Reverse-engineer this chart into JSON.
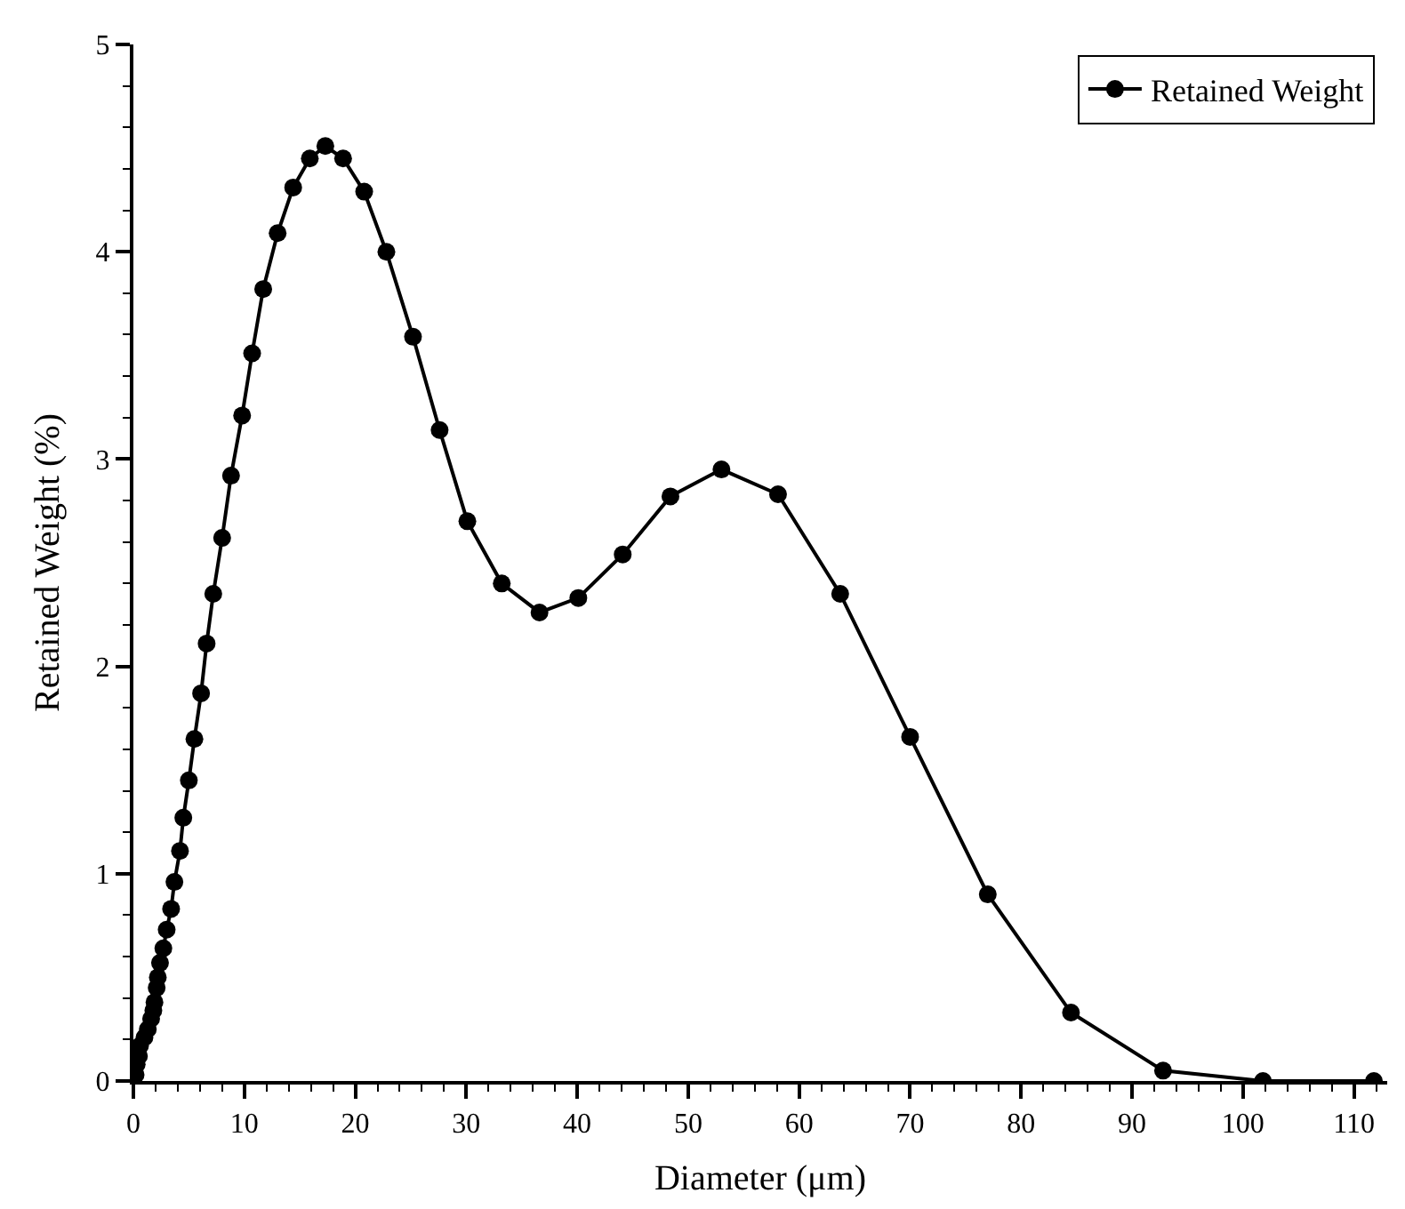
{
  "chart_data": {
    "type": "line",
    "xlabel": "Diameter (μm)",
    "ylabel": "Retained Weight (%)",
    "x": [
      0.0,
      0.2,
      0.3,
      0.5,
      0.6,
      1.0,
      1.3,
      1.6,
      1.8,
      1.9,
      2.1,
      2.2,
      2.4,
      2.7,
      3.0,
      3.4,
      3.7,
      4.2,
      4.5,
      5.0,
      5.5,
      6.1,
      6.6,
      7.2,
      8.0,
      8.8,
      9.8,
      10.7,
      11.7,
      13.0,
      14.4,
      15.9,
      17.3,
      18.9,
      20.8,
      22.8,
      25.2,
      27.6,
      30.1,
      33.2,
      36.6,
      40.1,
      44.1,
      48.4,
      53.0,
      58.1,
      63.7,
      70.0,
      77.0,
      84.5,
      92.8,
      101.8,
      111.8
    ],
    "series": [
      {
        "name": "Retained Weight",
        "color": "#000000",
        "values": [
          0.01,
          0.03,
          0.08,
          0.12,
          0.17,
          0.21,
          0.25,
          0.3,
          0.34,
          0.38,
          0.45,
          0.5,
          0.57,
          0.64,
          0.73,
          0.83,
          0.96,
          1.11,
          1.27,
          1.45,
          1.65,
          1.87,
          2.11,
          2.35,
          2.62,
          2.92,
          3.21,
          3.51,
          3.82,
          4.09,
          4.31,
          4.45,
          4.51,
          4.45,
          4.29,
          4.0,
          3.59,
          3.14,
          2.7,
          2.4,
          2.26,
          2.33,
          2.54,
          2.82,
          2.95,
          2.83,
          2.35,
          1.66,
          0.9,
          0.33,
          0.05,
          0.0,
          0.0
        ]
      }
    ],
    "xlim": [
      0,
      113
    ],
    "xticks": [
      0,
      10,
      20,
      30,
      40,
      50,
      60,
      70,
      80,
      90,
      100,
      110
    ],
    "ylim": [
      0,
      5
    ],
    "yticks": [
      0,
      1,
      2,
      3,
      4,
      5
    ],
    "legend": "top right",
    "marker": "circle",
    "line_style": "solid"
  }
}
